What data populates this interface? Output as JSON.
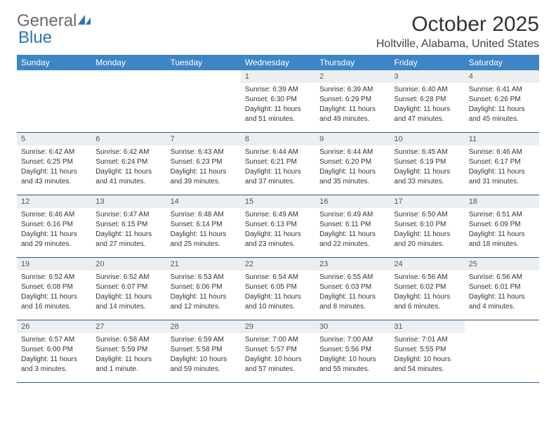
{
  "logo": {
    "text_general": "General",
    "text_blue": "Blue"
  },
  "title": "October 2025",
  "subtitle": "Holtville, Alabama, United States",
  "colors": {
    "header_bg": "#3e85c6",
    "header_text": "#ffffff",
    "daynum_bg": "#eceff2",
    "border": "#2a5b86",
    "logo_gray": "#6b6b6b",
    "logo_blue": "#2a76b8"
  },
  "weekdays": [
    "Sunday",
    "Monday",
    "Tuesday",
    "Wednesday",
    "Thursday",
    "Friday",
    "Saturday"
  ],
  "weeks": [
    [
      null,
      null,
      null,
      {
        "num": "1",
        "sunrise": "Sunrise: 6:39 AM",
        "sunset": "Sunset: 6:30 PM",
        "daylight1": "Daylight: 11 hours",
        "daylight2": "and 51 minutes."
      },
      {
        "num": "2",
        "sunrise": "Sunrise: 6:39 AM",
        "sunset": "Sunset: 6:29 PM",
        "daylight1": "Daylight: 11 hours",
        "daylight2": "and 49 minutes."
      },
      {
        "num": "3",
        "sunrise": "Sunrise: 6:40 AM",
        "sunset": "Sunset: 6:28 PM",
        "daylight1": "Daylight: 11 hours",
        "daylight2": "and 47 minutes."
      },
      {
        "num": "4",
        "sunrise": "Sunrise: 6:41 AM",
        "sunset": "Sunset: 6:26 PM",
        "daylight1": "Daylight: 11 hours",
        "daylight2": "and 45 minutes."
      }
    ],
    [
      {
        "num": "5",
        "sunrise": "Sunrise: 6:42 AM",
        "sunset": "Sunset: 6:25 PM",
        "daylight1": "Daylight: 11 hours",
        "daylight2": "and 43 minutes."
      },
      {
        "num": "6",
        "sunrise": "Sunrise: 6:42 AM",
        "sunset": "Sunset: 6:24 PM",
        "daylight1": "Daylight: 11 hours",
        "daylight2": "and 41 minutes."
      },
      {
        "num": "7",
        "sunrise": "Sunrise: 6:43 AM",
        "sunset": "Sunset: 6:23 PM",
        "daylight1": "Daylight: 11 hours",
        "daylight2": "and 39 minutes."
      },
      {
        "num": "8",
        "sunrise": "Sunrise: 6:44 AM",
        "sunset": "Sunset: 6:21 PM",
        "daylight1": "Daylight: 11 hours",
        "daylight2": "and 37 minutes."
      },
      {
        "num": "9",
        "sunrise": "Sunrise: 6:44 AM",
        "sunset": "Sunset: 6:20 PM",
        "daylight1": "Daylight: 11 hours",
        "daylight2": "and 35 minutes."
      },
      {
        "num": "10",
        "sunrise": "Sunrise: 6:45 AM",
        "sunset": "Sunset: 6:19 PM",
        "daylight1": "Daylight: 11 hours",
        "daylight2": "and 33 minutes."
      },
      {
        "num": "11",
        "sunrise": "Sunrise: 6:46 AM",
        "sunset": "Sunset: 6:17 PM",
        "daylight1": "Daylight: 11 hours",
        "daylight2": "and 31 minutes."
      }
    ],
    [
      {
        "num": "12",
        "sunrise": "Sunrise: 6:46 AM",
        "sunset": "Sunset: 6:16 PM",
        "daylight1": "Daylight: 11 hours",
        "daylight2": "and 29 minutes."
      },
      {
        "num": "13",
        "sunrise": "Sunrise: 6:47 AM",
        "sunset": "Sunset: 6:15 PM",
        "daylight1": "Daylight: 11 hours",
        "daylight2": "and 27 minutes."
      },
      {
        "num": "14",
        "sunrise": "Sunrise: 6:48 AM",
        "sunset": "Sunset: 6:14 PM",
        "daylight1": "Daylight: 11 hours",
        "daylight2": "and 25 minutes."
      },
      {
        "num": "15",
        "sunrise": "Sunrise: 6:49 AM",
        "sunset": "Sunset: 6:13 PM",
        "daylight1": "Daylight: 11 hours",
        "daylight2": "and 23 minutes."
      },
      {
        "num": "16",
        "sunrise": "Sunrise: 6:49 AM",
        "sunset": "Sunset: 6:11 PM",
        "daylight1": "Daylight: 11 hours",
        "daylight2": "and 22 minutes."
      },
      {
        "num": "17",
        "sunrise": "Sunrise: 6:50 AM",
        "sunset": "Sunset: 6:10 PM",
        "daylight1": "Daylight: 11 hours",
        "daylight2": "and 20 minutes."
      },
      {
        "num": "18",
        "sunrise": "Sunrise: 6:51 AM",
        "sunset": "Sunset: 6:09 PM",
        "daylight1": "Daylight: 11 hours",
        "daylight2": "and 18 minutes."
      }
    ],
    [
      {
        "num": "19",
        "sunrise": "Sunrise: 6:52 AM",
        "sunset": "Sunset: 6:08 PM",
        "daylight1": "Daylight: 11 hours",
        "daylight2": "and 16 minutes."
      },
      {
        "num": "20",
        "sunrise": "Sunrise: 6:52 AM",
        "sunset": "Sunset: 6:07 PM",
        "daylight1": "Daylight: 11 hours",
        "daylight2": "and 14 minutes."
      },
      {
        "num": "21",
        "sunrise": "Sunrise: 6:53 AM",
        "sunset": "Sunset: 6:06 PM",
        "daylight1": "Daylight: 11 hours",
        "daylight2": "and 12 minutes."
      },
      {
        "num": "22",
        "sunrise": "Sunrise: 6:54 AM",
        "sunset": "Sunset: 6:05 PM",
        "daylight1": "Daylight: 11 hours",
        "daylight2": "and 10 minutes."
      },
      {
        "num": "23",
        "sunrise": "Sunrise: 6:55 AM",
        "sunset": "Sunset: 6:03 PM",
        "daylight1": "Daylight: 11 hours",
        "daylight2": "and 8 minutes."
      },
      {
        "num": "24",
        "sunrise": "Sunrise: 6:56 AM",
        "sunset": "Sunset: 6:02 PM",
        "daylight1": "Daylight: 11 hours",
        "daylight2": "and 6 minutes."
      },
      {
        "num": "25",
        "sunrise": "Sunrise: 6:56 AM",
        "sunset": "Sunset: 6:01 PM",
        "daylight1": "Daylight: 11 hours",
        "daylight2": "and 4 minutes."
      }
    ],
    [
      {
        "num": "26",
        "sunrise": "Sunrise: 6:57 AM",
        "sunset": "Sunset: 6:00 PM",
        "daylight1": "Daylight: 11 hours",
        "daylight2": "and 3 minutes."
      },
      {
        "num": "27",
        "sunrise": "Sunrise: 6:58 AM",
        "sunset": "Sunset: 5:59 PM",
        "daylight1": "Daylight: 11 hours",
        "daylight2": "and 1 minute."
      },
      {
        "num": "28",
        "sunrise": "Sunrise: 6:59 AM",
        "sunset": "Sunset: 5:58 PM",
        "daylight1": "Daylight: 10 hours",
        "daylight2": "and 59 minutes."
      },
      {
        "num": "29",
        "sunrise": "Sunrise: 7:00 AM",
        "sunset": "Sunset: 5:57 PM",
        "daylight1": "Daylight: 10 hours",
        "daylight2": "and 57 minutes."
      },
      {
        "num": "30",
        "sunrise": "Sunrise: 7:00 AM",
        "sunset": "Sunset: 5:56 PM",
        "daylight1": "Daylight: 10 hours",
        "daylight2": "and 55 minutes."
      },
      {
        "num": "31",
        "sunrise": "Sunrise: 7:01 AM",
        "sunset": "Sunset: 5:55 PM",
        "daylight1": "Daylight: 10 hours",
        "daylight2": "and 54 minutes."
      },
      null
    ]
  ]
}
